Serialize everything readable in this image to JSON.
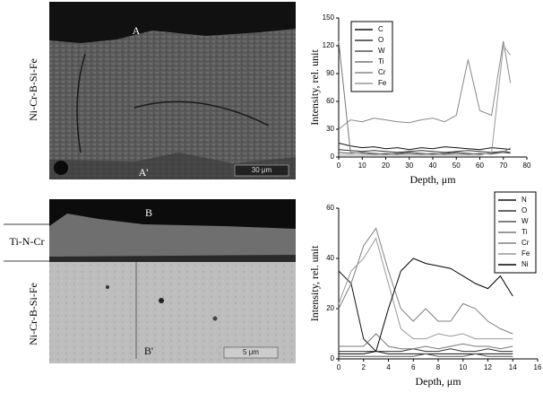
{
  "chart_data": [
    {
      "type": "line",
      "xlabel": "Depth, μm",
      "ylabel": "Intensity, rel. unit",
      "x": [
        0,
        5,
        10,
        15,
        20,
        25,
        30,
        35,
        40,
        45,
        50,
        55,
        60,
        65,
        70,
        73
      ],
      "xlim": [
        0,
        80
      ],
      "xticks": [
        0,
        10,
        20,
        30,
        40,
        50,
        60,
        70,
        80
      ],
      "ylim": [
        0,
        150
      ],
      "yticks": [
        0,
        30,
        60,
        90,
        120,
        150
      ],
      "grid": false,
      "legend": "upper left",
      "series": [
        {
          "name": "C",
          "color": "#111111",
          "values": [
            15,
            12,
            10,
            11,
            9,
            10,
            8,
            10,
            9,
            11,
            10,
            9,
            8,
            10,
            9,
            8
          ]
        },
        {
          "name": "O",
          "color": "#333333",
          "values": [
            8,
            7,
            6,
            7,
            6,
            5,
            6,
            7,
            6,
            5,
            6,
            7,
            6,
            5,
            6,
            5
          ]
        },
        {
          "name": "W",
          "color": "#555555",
          "values": [
            5,
            4,
            5,
            4,
            3,
            4,
            5,
            4,
            3,
            4,
            5,
            4,
            3,
            4,
            5,
            4
          ]
        },
        {
          "name": "Ti",
          "color": "#777777",
          "values": [
            125,
            5,
            4,
            3,
            4,
            3,
            4,
            3,
            4,
            3,
            4,
            3,
            4,
            3,
            5,
            10
          ]
        },
        {
          "name": "Cr",
          "color": "#888888",
          "values": [
            30,
            40,
            38,
            42,
            40,
            38,
            37,
            40,
            42,
            38,
            45,
            105,
            50,
            45,
            125,
            80
          ]
        },
        {
          "name": "Fe",
          "color": "#999999",
          "values": [
            2,
            2,
            2,
            2,
            2,
            2,
            2,
            2,
            2,
            2,
            2,
            2,
            2,
            5,
            120,
            110
          ]
        }
      ]
    },
    {
      "type": "line",
      "xlabel": "Depth, μm",
      "ylabel": "Intensity, rel. unit",
      "x": [
        0,
        1,
        2,
        3,
        4,
        5,
        6,
        7,
        8,
        9,
        10,
        11,
        12,
        13,
        14
      ],
      "xlim": [
        0,
        16
      ],
      "xticks": [
        0,
        2,
        4,
        6,
        8,
        10,
        12,
        14,
        16
      ],
      "ylim": [
        0,
        60
      ],
      "yticks": [
        0,
        20,
        40,
        60
      ],
      "grid": false,
      "legend": "upper right",
      "series": [
        {
          "name": "N",
          "color": "#111111",
          "values": [
            35,
            30,
            8,
            3,
            2,
            2,
            2,
            2,
            2,
            2,
            2,
            2,
            2,
            2,
            2
          ]
        },
        {
          "name": "O",
          "color": "#333333",
          "values": [
            3,
            3,
            3,
            3,
            3,
            3,
            4,
            3,
            3,
            4,
            3,
            3,
            4,
            3,
            3
          ]
        },
        {
          "name": "W",
          "color": "#555555",
          "values": [
            1,
            1,
            1,
            1,
            1,
            1,
            1,
            2,
            1,
            1,
            1,
            2,
            1,
            1,
            1
          ]
        },
        {
          "name": "Ti",
          "color": "#777777",
          "values": [
            5,
            5,
            5,
            10,
            5,
            4,
            4,
            5,
            4,
            5,
            6,
            5,
            5,
            4,
            5
          ]
        },
        {
          "name": "Cr",
          "color": "#808080",
          "values": [
            20,
            30,
            45,
            52,
            35,
            20,
            15,
            20,
            15,
            15,
            22,
            20,
            15,
            12,
            10
          ]
        },
        {
          "name": "Fe",
          "color": "#999999",
          "values": [
            22,
            35,
            40,
            48,
            30,
            12,
            8,
            8,
            10,
            9,
            10,
            8,
            8,
            8,
            8
          ]
        },
        {
          "name": "Ni",
          "color": "#000000",
          "values": [
            2,
            2,
            2,
            3,
            20,
            35,
            40,
            38,
            37,
            36,
            33,
            30,
            28,
            33,
            25
          ]
        }
      ]
    }
  ],
  "micrographs": [
    {
      "top_label": "A",
      "bottom_label": "A'",
      "layer_labels": [
        "Ni-Cr-B-Si-Fe"
      ],
      "scale": "30 μm"
    },
    {
      "top_label": "B",
      "bottom_label": "B'",
      "layer_labels": [
        "Ti-N-Cr",
        "Ni-Cr-B-Si-Fe"
      ],
      "scale": "5 μm"
    }
  ]
}
